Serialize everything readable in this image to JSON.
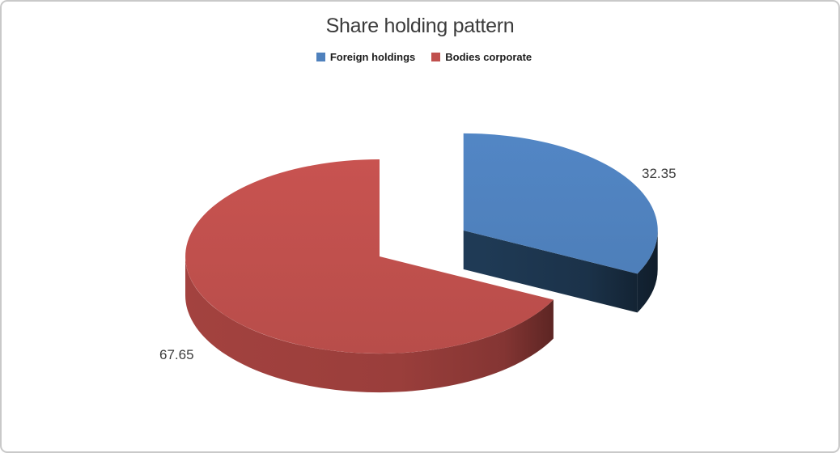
{
  "chart": {
    "title": "Share holding pattern"
  },
  "legend": {
    "items": [
      {
        "label": "Foreign holdings",
        "color": "#4F81BD"
      },
      {
        "label": "Bodies corporate",
        "color": "#C0504D"
      }
    ]
  },
  "chart_data": {
    "type": "pie",
    "style": "3d-exploded",
    "title": "Share holding pattern",
    "categories": [
      "Foreign holdings",
      "Bodies corporate"
    ],
    "values": [
      32.35,
      67.65
    ],
    "labels": [
      "32.35",
      "67.65"
    ],
    "colors": [
      "#4F81BD",
      "#C0504D"
    ],
    "side_colors": [
      "#1F3A55",
      "#9A3E3B"
    ],
    "exploded": [
      true,
      false
    ],
    "start_angle_deg": 0,
    "direction": "clockwise",
    "legend_position": "top",
    "frame_border_color": "#C9C9C9"
  }
}
